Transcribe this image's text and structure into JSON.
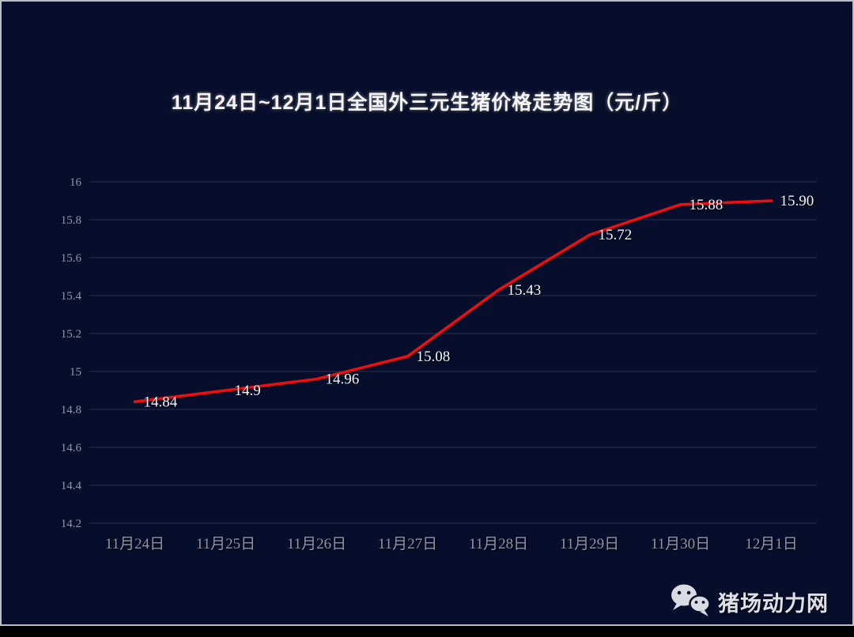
{
  "page": {
    "watermark": "猪场动力网"
  },
  "chart_data": {
    "type": "line",
    "title": "11月24日~12月1日全国外三元生猪价格走势图（元/斤）",
    "categories": [
      "11月24日",
      "11月25日",
      "11月26日",
      "11月27日",
      "11月28日",
      "11月29日",
      "11月30日",
      "12月1日"
    ],
    "series": [
      {
        "name": "全国外三元生猪价格",
        "values": [
          14.84,
          14.9,
          14.96,
          15.08,
          15.43,
          15.72,
          15.88,
          15.9
        ],
        "labels": [
          "14.84",
          "14.9",
          "14.96",
          "15.08",
          "15.43",
          "15.72",
          "15.88",
          "15.90"
        ]
      }
    ],
    "ylim": [
      14.2,
      16
    ],
    "yticks": [
      16,
      15.8,
      15.6,
      15.4,
      15.2,
      15,
      14.8,
      14.6,
      14.4,
      14.2
    ],
    "ytick_labels": [
      "16",
      "15.8",
      "15.6",
      "15.4",
      "15.2",
      "15",
      "14.8",
      "14.6",
      "14.4",
      "14.2"
    ],
    "xlabel": "",
    "ylabel": "",
    "grid": true,
    "legend_position": "none",
    "colors": {
      "line": "#f20d0d",
      "background": "#060e2b",
      "grid": "#28324b",
      "axis_text": "#9095a8",
      "data_label": "#f5f5f7",
      "card_border": "#b9bdc6",
      "watermark_text": "#dfe0e6",
      "watermark_icon": "#d9dbe2"
    }
  }
}
